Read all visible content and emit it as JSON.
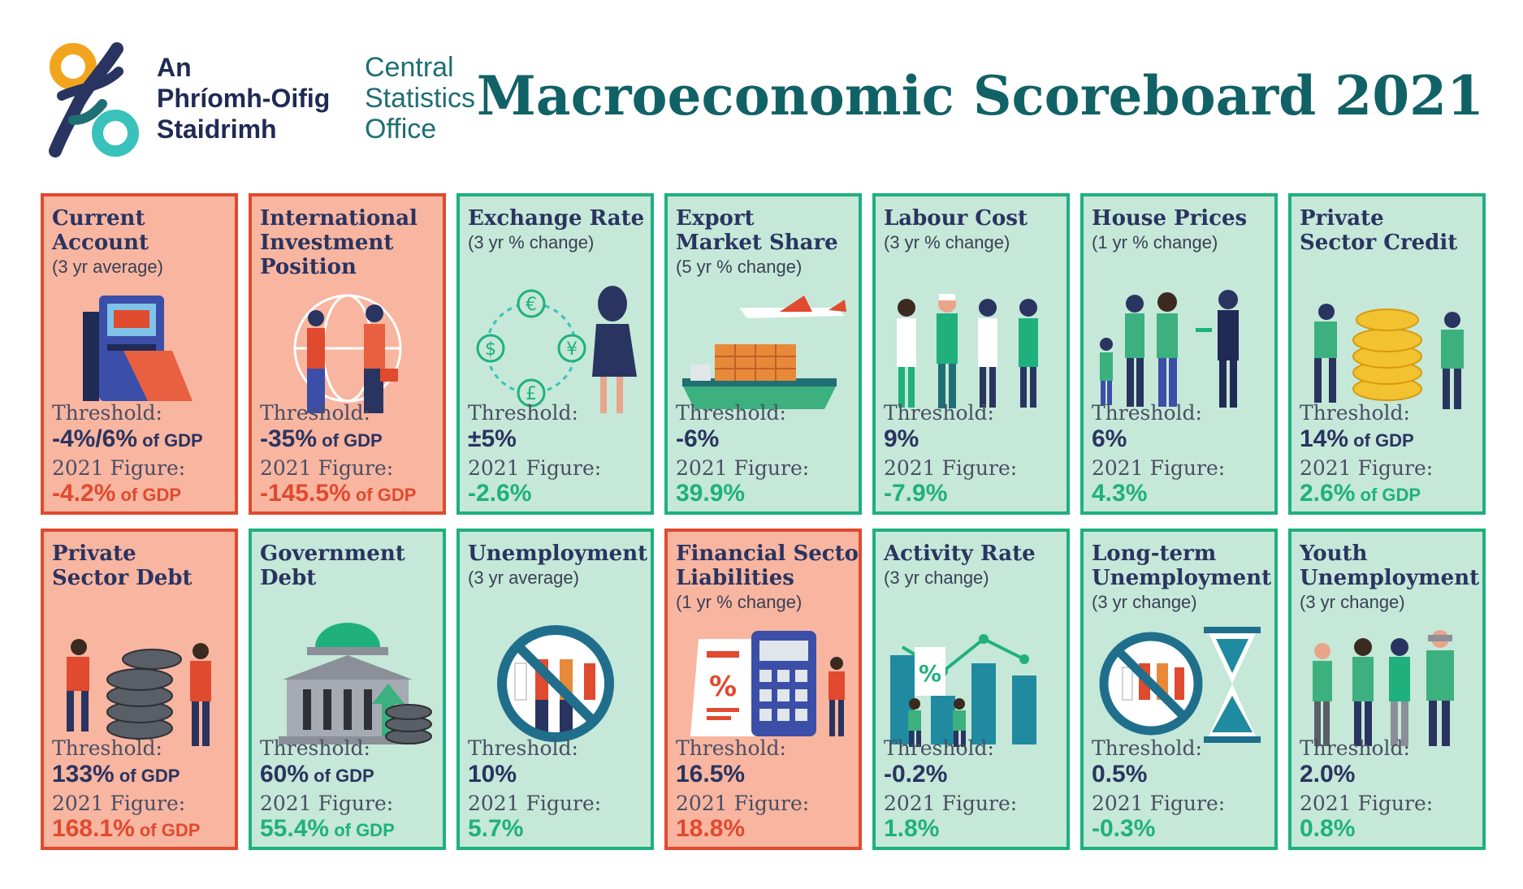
{
  "header": {
    "org_irish_lines": [
      "An",
      "Phríomh-Oifig",
      "Staidrimh"
    ],
    "org_english_lines": [
      "Central",
      "Statistics",
      "Office"
    ],
    "title": "Macroeconomic Scoreboard 2021"
  },
  "colors": {
    "breach_background": "#f8b5a0",
    "breach_border": "#e04a2f",
    "ok_background": "#c5e8d8",
    "ok_border": "#1fb07e",
    "title_teal": "#116266",
    "navy": "#2a3460"
  },
  "labels": {
    "threshold": "Threshold:",
    "figure": "2021 Figure:"
  },
  "indicators": [
    {
      "title_lines": [
        "Current",
        "Account"
      ],
      "subtitle": "(3 yr average)",
      "status": "bad",
      "icon": "atm-machine-icon",
      "threshold": "-4%/6%",
      "threshold_unit": " of GDP",
      "figure": "-4.2%",
      "figure_unit": " of GDP"
    },
    {
      "title_lines": [
        "International",
        "Investment",
        "Position"
      ],
      "subtitle": "",
      "status": "bad",
      "icon": "globe-handshake-icon",
      "threshold": "-35%",
      "threshold_unit": " of GDP",
      "figure": "-145.5%",
      "figure_unit": " of GDP"
    },
    {
      "title_lines": [
        "Exchange Rate"
      ],
      "subtitle": "(3 yr % change)",
      "status": "good",
      "icon": "currency-exchange-icon",
      "threshold": "±5%",
      "threshold_unit": "",
      "figure": "-2.6%",
      "figure_unit": ""
    },
    {
      "title_lines": [
        "Export",
        "Market Share"
      ],
      "subtitle": "(5 yr % change)",
      "status": "good",
      "icon": "cargo-ship-plane-icon",
      "threshold": "-6%",
      "threshold_unit": "",
      "figure": "39.9%",
      "figure_unit": ""
    },
    {
      "title_lines": [
        "Labour Cost"
      ],
      "subtitle": "(3 yr % change)",
      "status": "good",
      "icon": "workers-icon",
      "threshold": "9%",
      "threshold_unit": "",
      "figure": "-7.9%",
      "figure_unit": ""
    },
    {
      "title_lines": [
        "House Prices"
      ],
      "subtitle": "(1 yr % change)",
      "status": "good",
      "icon": "family-house-keys-icon",
      "threshold": "6%",
      "threshold_unit": "",
      "figure": "4.3%",
      "figure_unit": ""
    },
    {
      "title_lines": [
        "Private",
        "Sector Credit"
      ],
      "subtitle": "",
      "status": "good",
      "icon": "coins-stack-icon",
      "threshold": "14%",
      "threshold_unit": " of GDP",
      "figure": "2.6%",
      "figure_unit": " of GDP"
    },
    {
      "title_lines": [
        "Private",
        "Sector Debt"
      ],
      "subtitle": "",
      "status": "bad",
      "icon": "dark-coins-stack-icon",
      "threshold": "133%",
      "threshold_unit": " of GDP",
      "figure": "168.1%",
      "figure_unit": " of GDP"
    },
    {
      "title_lines": [
        "Government",
        "Debt"
      ],
      "subtitle": "",
      "status": "good",
      "icon": "government-building-icon",
      "threshold": "60%",
      "threshold_unit": " of GDP",
      "figure": "55.4%",
      "figure_unit": " of GDP"
    },
    {
      "title_lines": [
        "Unemployment"
      ],
      "subtitle": "(3 yr average)",
      "status": "good",
      "icon": "no-workers-icon",
      "threshold": "10%",
      "threshold_unit": "",
      "figure": "5.7%",
      "figure_unit": ""
    },
    {
      "title_lines": [
        "Financial Sector",
        "Liabilities"
      ],
      "subtitle": "(1 yr % change)",
      "status": "bad",
      "icon": "calculator-receipt-icon",
      "threshold": "16.5%",
      "threshold_unit": "",
      "figure": "18.8%",
      "figure_unit": ""
    },
    {
      "title_lines": [
        "Activity Rate"
      ],
      "subtitle": "(3 yr change)",
      "status": "good",
      "icon": "bar-chart-icon",
      "threshold": "-0.2%",
      "threshold_unit": "",
      "figure": "1.8%",
      "figure_unit": ""
    },
    {
      "title_lines": [
        "Long-term",
        "Unemployment"
      ],
      "subtitle": "(3 yr change)",
      "status": "good",
      "icon": "hourglass-icon",
      "threshold": "0.5%",
      "threshold_unit": "",
      "figure": "-0.3%",
      "figure_unit": ""
    },
    {
      "title_lines": [
        "Youth",
        "Unemployment"
      ],
      "subtitle": "(3 yr change)",
      "status": "good",
      "icon": "young-people-phones-icon",
      "threshold": "2.0%",
      "threshold_unit": "",
      "figure": "0.8%",
      "figure_unit": ""
    }
  ]
}
